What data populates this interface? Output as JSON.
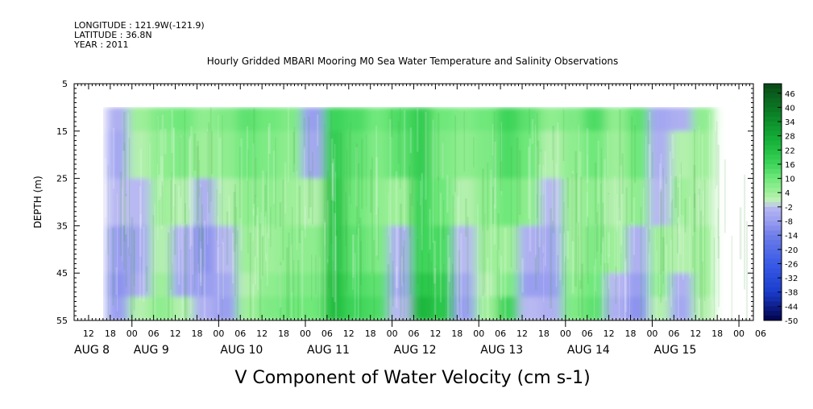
{
  "header": {
    "longitude": "LONGITUDE : 121.9W(-121.9)",
    "latitude": "LATITUDE : 36.8N",
    "year": "YEAR : 2011"
  },
  "chart_data": {
    "type": "heatmap",
    "title": "Hourly Gridded MBARI Mooring M0 Sea Water Temperature and Salinity Observations",
    "xlabel": "V Component of Water Velocity (cm s-1)",
    "ylabel": "DEPTH (m)",
    "ylim": [
      55,
      5
    ],
    "y_ticks": [
      5,
      15,
      25,
      35,
      45,
      55
    ],
    "x_hour_ticks": [
      "12",
      "18",
      "00",
      "06",
      "12",
      "18",
      "00",
      "06",
      "12",
      "18",
      "00",
      "06",
      "12",
      "18",
      "00",
      "06",
      "12",
      "18",
      "00",
      "06",
      "12",
      "18",
      "00",
      "06",
      "12",
      "18",
      "00",
      "06",
      "12",
      "18",
      "00",
      "06"
    ],
    "x_day_labels": [
      "AUG  8",
      "AUG  9",
      "AUG 10",
      "AUG 11",
      "AUG 12",
      "AUG 13",
      "AUG 14",
      "AUG 15"
    ],
    "data_start": "AUG 8 17:00",
    "data_depth_top": 10,
    "colorbar": {
      "min": -50,
      "max": 50,
      "labels": [
        "46",
        "40",
        "34",
        "28",
        "22",
        "16",
        "10",
        "4",
        "-2",
        "-8",
        "-14",
        "-20",
        "-26",
        "-32",
        "-38",
        "-44",
        "-50"
      ]
    },
    "columns": [
      {
        "time": "AUG 8 18",
        "depth_profile": [
          -4,
          -6,
          -2,
          -8,
          -10,
          -8
        ]
      },
      {
        "time": "AUG 9 00",
        "depth_profile": [
          4,
          2,
          -2,
          -6,
          -4,
          2
        ]
      },
      {
        "time": "AUG 9 06",
        "depth_profile": [
          8,
          6,
          4,
          2,
          4,
          6
        ]
      },
      {
        "time": "AUG 9 12",
        "depth_profile": [
          10,
          8,
          2,
          -4,
          -6,
          2
        ]
      },
      {
        "time": "AUG 9 18",
        "depth_profile": [
          6,
          4,
          -4,
          -10,
          -8,
          -4
        ]
      },
      {
        "time": "AUG 10 00",
        "depth_profile": [
          8,
          6,
          2,
          -2,
          -6,
          -8
        ]
      },
      {
        "time": "AUG 10 06",
        "depth_profile": [
          12,
          10,
          6,
          4,
          2,
          4
        ]
      },
      {
        "time": "AUG 10 12",
        "depth_profile": [
          10,
          8,
          6,
          4,
          6,
          8
        ]
      },
      {
        "time": "AUG 10 18",
        "depth_profile": [
          8,
          6,
          4,
          6,
          8,
          10
        ]
      },
      {
        "time": "AUG 11 00",
        "depth_profile": [
          -8,
          -6,
          2,
          6,
          8,
          10
        ]
      },
      {
        "time": "AUG 11 06",
        "depth_profile": [
          16,
          18,
          20,
          20,
          22,
          22
        ]
      },
      {
        "time": "AUG 11 12",
        "depth_profile": [
          14,
          12,
          10,
          12,
          14,
          16
        ]
      },
      {
        "time": "AUG 11 18",
        "depth_profile": [
          10,
          8,
          6,
          8,
          12,
          14
        ]
      },
      {
        "time": "AUG 12 00",
        "depth_profile": [
          14,
          12,
          4,
          -4,
          -6,
          -2
        ]
      },
      {
        "time": "AUG 12 06",
        "depth_profile": [
          18,
          18,
          16,
          16,
          20,
          24
        ]
      },
      {
        "time": "AUG 12 12",
        "depth_profile": [
          10,
          8,
          10,
          14,
          18,
          20
        ]
      },
      {
        "time": "AUG 12 18",
        "depth_profile": [
          8,
          6,
          2,
          -2,
          -6,
          -8
        ]
      },
      {
        "time": "AUG 13 00",
        "depth_profile": [
          10,
          8,
          6,
          4,
          2,
          4
        ]
      },
      {
        "time": "AUG 13 06",
        "depth_profile": [
          16,
          14,
          10,
          4,
          8,
          16
        ]
      },
      {
        "time": "AUG 13 12",
        "depth_profile": [
          12,
          10,
          6,
          -4,
          -8,
          -2
        ]
      },
      {
        "time": "AUG 13 18",
        "depth_profile": [
          6,
          2,
          -2,
          -6,
          -8,
          -4
        ]
      },
      {
        "time": "AUG 14 00",
        "depth_profile": [
          8,
          6,
          4,
          4,
          6,
          8
        ]
      },
      {
        "time": "AUG 14 06",
        "depth_profile": [
          14,
          10,
          6,
          8,
          10,
          12
        ]
      },
      {
        "time": "AUG 14 12",
        "depth_profile": [
          6,
          4,
          2,
          4,
          -2,
          -4
        ]
      },
      {
        "time": "AUG 14 18",
        "depth_profile": [
          12,
          10,
          6,
          -4,
          -8,
          -10
        ]
      },
      {
        "time": "AUG 15 00",
        "depth_profile": [
          -6,
          -4,
          -2,
          4,
          6,
          2
        ]
      },
      {
        "time": "AUG 15 06",
        "depth_profile": [
          -4,
          2,
          4,
          2,
          -4,
          -6
        ]
      },
      {
        "time": "AUG 15 12",
        "depth_profile": [
          6,
          4,
          2,
          4,
          4,
          2
        ]
      }
    ]
  }
}
